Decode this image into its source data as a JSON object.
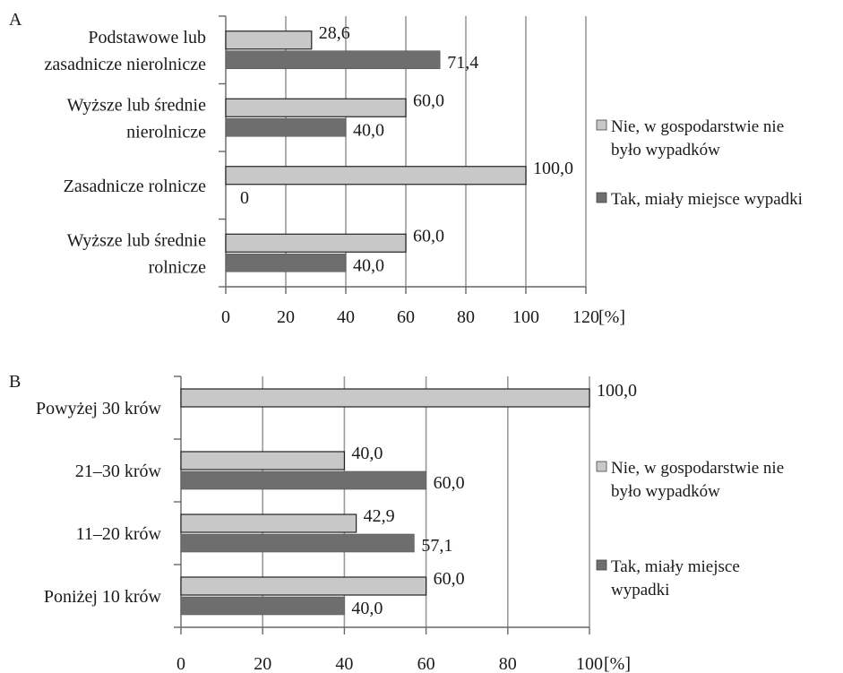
{
  "chart_data": [
    {
      "type": "bar",
      "orientation": "horizontal",
      "panel_label": "A",
      "unit": "[%]",
      "categories": [
        [
          "Podstawowe lub",
          "zasadnicze nierolnicze"
        ],
        [
          "Wyższe lub średnie",
          "nierolnicze"
        ],
        [
          "Zasadnicze rolnicze"
        ],
        [
          "Wyższe lub średnie",
          "rolnicze"
        ]
      ],
      "series": [
        {
          "name": [
            "Nie, w gospodarstwie nie",
            "było wypadków"
          ],
          "values": [
            28.6,
            60.0,
            100.0,
            60.0
          ],
          "labels": [
            "28,6",
            "60,0",
            "100,0",
            "60,0"
          ],
          "color": "#c8c8c8"
        },
        {
          "name": [
            "Tak, miały miejsce wypadki"
          ],
          "values": [
            71.4,
            40.0,
            0,
            40.0
          ],
          "labels": [
            "71,4",
            "40,0",
            "0",
            "40,0"
          ],
          "color": "#6e6e6e"
        }
      ],
      "xlim": [
        0,
        120
      ],
      "xticks": [
        "0",
        "20",
        "40",
        "60",
        "80",
        "100",
        "120"
      ],
      "grid": true,
      "legend_position": "right"
    },
    {
      "type": "bar",
      "orientation": "horizontal",
      "panel_label": "B",
      "unit": "[%]",
      "categories": [
        [
          "Powyżej 30 krów"
        ],
        [
          "21–30 krów"
        ],
        [
          "11–20 krów"
        ],
        [
          "Poniżej 10 krów"
        ]
      ],
      "series": [
        {
          "name": [
            "Nie, w gospodarstwie nie",
            "było wypadków"
          ],
          "values": [
            100.0,
            40.0,
            42.9,
            60.0
          ],
          "labels": [
            "100,0",
            "40,0",
            "42,9",
            "60,0"
          ],
          "color": "#c8c8c8"
        },
        {
          "name": [
            "Tak, miały miejsce",
            "wypadki"
          ],
          "values": [
            null,
            60.0,
            57.1,
            40.0
          ],
          "labels": [
            "",
            "60,0",
            "57,1",
            "40,0"
          ],
          "color": "#6e6e6e"
        }
      ],
      "xlim": [
        0,
        100
      ],
      "xticks": [
        "0",
        "20",
        "40",
        "60",
        "80",
        "100"
      ],
      "grid": true,
      "legend_position": "right"
    }
  ]
}
